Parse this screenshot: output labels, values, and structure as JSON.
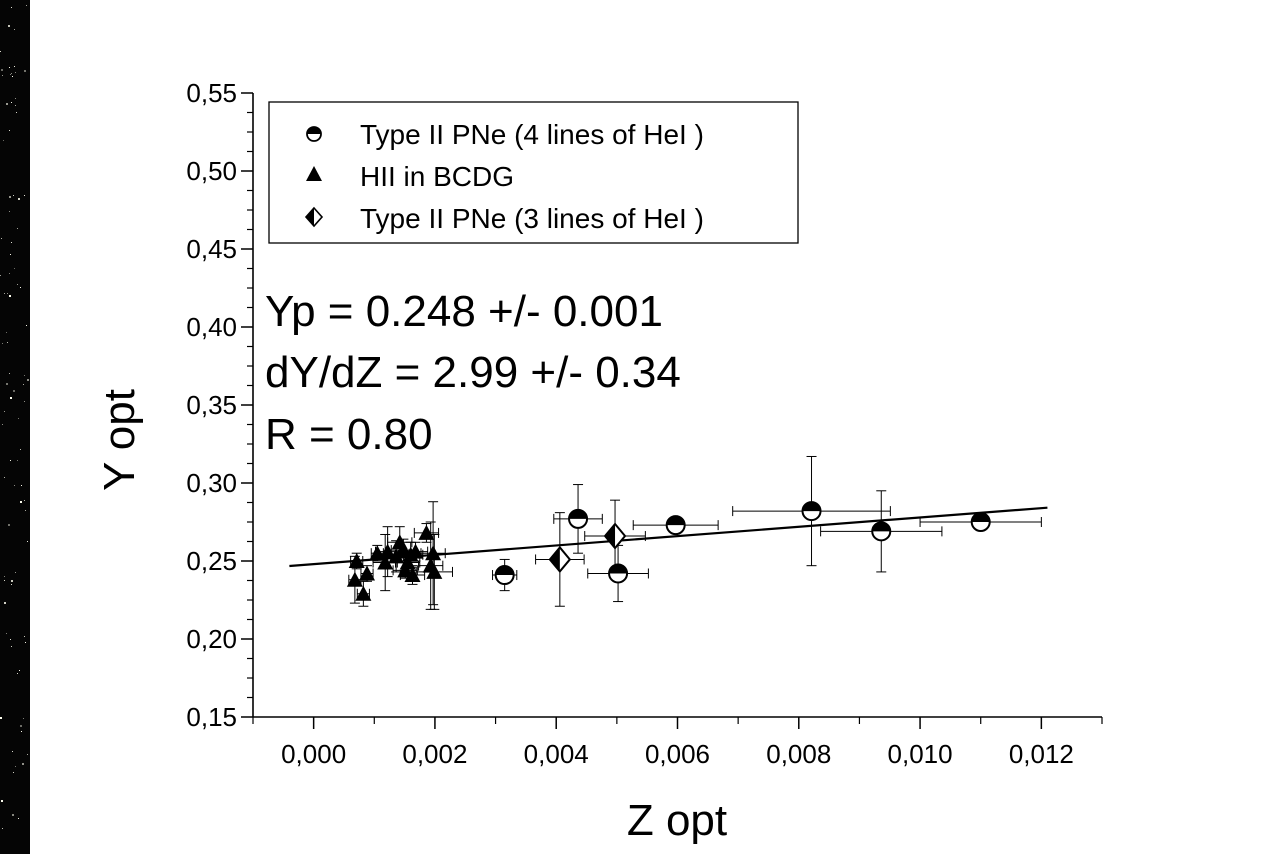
{
  "chart_data": {
    "type": "scatter",
    "xlabel": "Z opt",
    "ylabel": "Y opt",
    "xlim": [
      -0.001,
      0.013
    ],
    "ylim": [
      0.15,
      0.55
    ],
    "x_ticks": [
      "0,000",
      "0,002",
      "0,004",
      "0,006",
      "0,008",
      "0,010",
      "0,012"
    ],
    "x_tick_values": [
      0.0,
      0.002,
      0.004,
      0.006,
      0.008,
      0.01,
      0.012
    ],
    "y_ticks": [
      "0,15",
      "0,20",
      "0,25",
      "0,30",
      "0,35",
      "0,40",
      "0,45",
      "0,50",
      "0,55"
    ],
    "y_tick_values": [
      0.15,
      0.2,
      0.25,
      0.3,
      0.35,
      0.4,
      0.45,
      0.5,
      0.55
    ],
    "legend_position": "top-left",
    "annotations": [
      "Yp = 0.248 +/- 0.001",
      "dY/dZ = 2.99 +/- 0.34",
      "R = 0.80"
    ],
    "fit": {
      "intercept": 0.248,
      "slope": 2.99,
      "x_range": [
        -0.0004,
        0.0121
      ]
    },
    "series": [
      {
        "name": "Type II PNe (4 lines of HeI )",
        "marker": "circle-half",
        "points": [
          {
            "x": 0.00315,
            "y": 0.241,
            "xerr": 0.0002,
            "yerr": 0.01
          },
          {
            "x": 0.00436,
            "y": 0.277,
            "xerr": 0.0004,
            "yerr": 0.022
          },
          {
            "x": 0.00502,
            "y": 0.242,
            "xerr": 0.0005,
            "yerr": 0.018
          },
          {
            "x": 0.00597,
            "y": 0.273,
            "xerr": 0.0007,
            "yerr": 0.004
          },
          {
            "x": 0.00821,
            "y": 0.282,
            "xerr": 0.0013,
            "yerr": 0.035
          },
          {
            "x": 0.00936,
            "y": 0.269,
            "xerr": 0.001,
            "yerr": 0.026
          },
          {
            "x": 0.011,
            "y": 0.275,
            "xerr": 0.001,
            "yerr": 0.004
          }
        ]
      },
      {
        "name": "HII in BCDG",
        "marker": "triangle",
        "points": [
          {
            "x": 0.00068,
            "y": 0.238,
            "xerr": 0.0001,
            "yerr": 0.015
          },
          {
            "x": 0.00071,
            "y": 0.25,
            "xerr": 0.0001,
            "yerr": 0.005
          },
          {
            "x": 0.00082,
            "y": 0.229,
            "xerr": 0.0001,
            "yerr": 0.008
          },
          {
            "x": 0.00088,
            "y": 0.242,
            "xerr": 0.0001,
            "yerr": 0.005
          },
          {
            "x": 0.00105,
            "y": 0.255,
            "xerr": 0.0001,
            "yerr": 0.005
          },
          {
            "x": 0.00118,
            "y": 0.249,
            "xerr": 0.0002,
            "yerr": 0.018
          },
          {
            "x": 0.00122,
            "y": 0.256,
            "xerr": 0.0002,
            "yerr": 0.016
          },
          {
            "x": 0.00136,
            "y": 0.253,
            "xerr": 0.0002,
            "yerr": 0.01
          },
          {
            "x": 0.00142,
            "y": 0.262,
            "xerr": 0.0002,
            "yerr": 0.01
          },
          {
            "x": 0.00148,
            "y": 0.257,
            "xerr": 0.0002,
            "yerr": 0.007
          },
          {
            "x": 0.00151,
            "y": 0.244,
            "xerr": 0.0002,
            "yerr": 0.005
          },
          {
            "x": 0.00155,
            "y": 0.249,
            "xerr": 0.0002,
            "yerr": 0.008
          },
          {
            "x": 0.0016,
            "y": 0.254,
            "xerr": 0.0002,
            "yerr": 0.008
          },
          {
            "x": 0.00163,
            "y": 0.241,
            "xerr": 0.0002,
            "yerr": 0.006
          },
          {
            "x": 0.00168,
            "y": 0.256,
            "xerr": 0.0002,
            "yerr": 0.006
          },
          {
            "x": 0.00186,
            "y": 0.268,
            "xerr": 0.0002,
            "yerr": 0.006
          },
          {
            "x": 0.00193,
            "y": 0.247,
            "xerr": 0.0002,
            "yerr": 0.028
          },
          {
            "x": 0.00197,
            "y": 0.255,
            "xerr": 0.0002,
            "yerr": 0.033
          },
          {
            "x": 0.00199,
            "y": 0.243,
            "xerr": 0.0003,
            "yerr": 0.024
          }
        ]
      },
      {
        "name": "Type II PNe (3 lines of HeI )",
        "marker": "diamond-half",
        "points": [
          {
            "x": 0.00406,
            "y": 0.251,
            "xerr": 0.0004,
            "yerr": 0.03
          },
          {
            "x": 0.00497,
            "y": 0.266,
            "xerr": 0.0005,
            "yerr": 0.023
          }
        ]
      }
    ]
  }
}
